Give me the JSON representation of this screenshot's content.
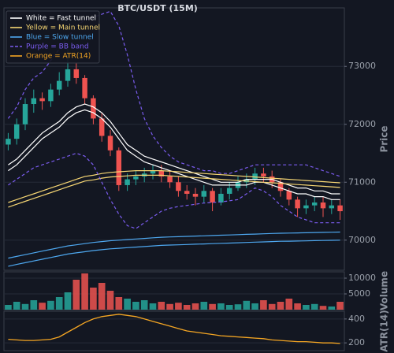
{
  "chart_data": [
    {
      "type": "candlestick",
      "title": "BTC/USDT (15M)",
      "ylabel": "Price",
      "ylim": [
        69480,
        74010
      ],
      "yticks": [
        70000,
        71000,
        72000,
        73000
      ],
      "grid": true,
      "up_color": "#26a69a",
      "down_color": "#ef5350",
      "open": [
        71650,
        71750,
        72000,
        72350,
        72450,
        72400,
        72600,
        72750,
        72950,
        72800,
        72450,
        72100,
        71800,
        71550,
        70950,
        71050,
        71100,
        71150,
        71200,
        71100,
        71000,
        70850,
        70800,
        70750,
        70850,
        70650,
        70800,
        70900,
        71000,
        71050,
        71150,
        71100,
        71000,
        70850,
        70700,
        70550,
        70600,
        70650,
        70550,
        70600
      ],
      "high": [
        71850,
        72100,
        72450,
        72600,
        72550,
        72700,
        72900,
        73300,
        73050,
        72850,
        72500,
        72200,
        71900,
        71600,
        71150,
        71200,
        71250,
        71300,
        71300,
        71200,
        71100,
        70950,
        70900,
        70950,
        70900,
        70900,
        71000,
        71100,
        71150,
        71250,
        71250,
        71200,
        71050,
        70900,
        70750,
        70700,
        70750,
        70750,
        70700,
        70700
      ],
      "low": [
        71550,
        71650,
        71900,
        72200,
        72250,
        72300,
        72500,
        72650,
        72700,
        72350,
        72000,
        71700,
        71450,
        70850,
        70850,
        70950,
        71000,
        71050,
        71000,
        70900,
        70750,
        70700,
        70600,
        70650,
        70500,
        70600,
        70700,
        70850,
        70900,
        70950,
        71000,
        70900,
        70750,
        70600,
        70400,
        70450,
        70500,
        70400,
        70450,
        70350
      ],
      "close": [
        71750,
        72000,
        72350,
        72450,
        72400,
        72600,
        72750,
        72950,
        72800,
        72450,
        72100,
        71800,
        71550,
        70950,
        71050,
        71100,
        71150,
        71200,
        71100,
        71000,
        70850,
        70800,
        70750,
        70850,
        70650,
        70800,
        70900,
        71000,
        71050,
        71150,
        71100,
        71000,
        70850,
        70700,
        70550,
        70600,
        70650,
        70550,
        70600,
        70500
      ],
      "series": [
        {
          "color": "#ffffff",
          "values": [
            71300,
            71400,
            71550,
            71700,
            71850,
            71950,
            72050,
            72200,
            72300,
            72350,
            72300,
            72200,
            72050,
            71850,
            71650,
            71550,
            71450,
            71400,
            71350,
            71300,
            71250,
            71200,
            71150,
            71100,
            71050,
            71000,
            71000,
            71000,
            71050,
            71050,
            71050,
            71050,
            71000,
            70950,
            70900,
            70900,
            70850,
            70850,
            70800,
            70800
          ]
        },
        {
          "color": "#ffffff",
          "values": [
            71200,
            71300,
            71450,
            71600,
            71750,
            71850,
            71950,
            72100,
            72200,
            72250,
            72200,
            72100,
            71950,
            71750,
            71550,
            71450,
            71350,
            71300,
            71250,
            71200,
            71150,
            71100,
            71050,
            71000,
            70950,
            70950,
            70950,
            70950,
            70950,
            71000,
            71000,
            70950,
            70900,
            70850,
            70800,
            70800,
            70750,
            70750,
            70700,
            70700
          ]
        },
        {
          "color": "#f7d774",
          "values": [
            70650,
            70700,
            70750,
            70800,
            70850,
            70900,
            70950,
            71000,
            71050,
            71100,
            71120,
            71150,
            71170,
            71180,
            71190,
            71200,
            71200,
            71200,
            71200,
            71190,
            71180,
            71170,
            71160,
            71150,
            71140,
            71130,
            71120,
            71110,
            71100,
            71090,
            71080,
            71070,
            71060,
            71050,
            71040,
            71030,
            71020,
            71010,
            71000,
            70990
          ]
        },
        {
          "color": "#f7d774",
          "values": [
            70570,
            70620,
            70670,
            70720,
            70770,
            70820,
            70870,
            70920,
            70970,
            71020,
            71040,
            71070,
            71090,
            71100,
            71110,
            71120,
            71120,
            71120,
            71120,
            71110,
            71100,
            71090,
            71080,
            71070,
            71060,
            71050,
            71040,
            71030,
            71020,
            71010,
            71000,
            70990,
            70980,
            70970,
            70960,
            70950,
            70940,
            70930,
            70920,
            70910
          ]
        },
        {
          "color": "#4ea8f0",
          "values": [
            69690,
            69720,
            69750,
            69780,
            69810,
            69840,
            69870,
            69900,
            69920,
            69940,
            69960,
            69975,
            69990,
            70000,
            70010,
            70020,
            70030,
            70040,
            70050,
            70055,
            70060,
            70065,
            70070,
            70075,
            70080,
            70085,
            70090,
            70095,
            70100,
            70105,
            70110,
            70115,
            70120,
            70122,
            70125,
            70128,
            70131,
            70134,
            70137,
            70140
          ]
        },
        {
          "color": "#4ea8f0",
          "values": [
            69550,
            69580,
            69610,
            69640,
            69670,
            69700,
            69730,
            69760,
            69780,
            69800,
            69820,
            69835,
            69850,
            69860,
            69870,
            69880,
            69890,
            69900,
            69910,
            69915,
            69920,
            69925,
            69930,
            69935,
            69940,
            69945,
            69950,
            69955,
            69960,
            69965,
            69970,
            69975,
            69980,
            69982,
            69985,
            69988,
            69991,
            69994,
            69997,
            70000
          ]
        },
        {
          "color": "#7b5cf0",
          "dashed": true,
          "values": [
            72100,
            72300,
            72600,
            72800,
            72900,
            73100,
            73300,
            73500,
            73700,
            73800,
            73850,
            73900,
            73950,
            73700,
            73200,
            72600,
            72100,
            71800,
            71600,
            71450,
            71350,
            71300,
            71250,
            71200,
            71200,
            71150,
            71150,
            71200,
            71250,
            71300,
            71300,
            71300,
            71300,
            71300,
            71300,
            71300,
            71250,
            71200,
            71150,
            71100
          ]
        },
        {
          "color": "#7b5cf0",
          "dashed": true,
          "values": [
            70950,
            71050,
            71150,
            71250,
            71300,
            71350,
            71400,
            71450,
            71500,
            71450,
            71300,
            71000,
            70700,
            70450,
            70250,
            70200,
            70300,
            70400,
            70500,
            70550,
            70580,
            70600,
            70620,
            70640,
            70650,
            70660,
            70680,
            70700,
            70800,
            70900,
            70850,
            70750,
            70600,
            70500,
            70400,
            70350,
            70300,
            70300,
            70300,
            70300
          ]
        }
      ],
      "legend_position": "upper left",
      "legend": [
        {
          "label": "White = Fast tunnel",
          "color": "#ffffff"
        },
        {
          "label": "Yellow = Main tunnel",
          "color": "#f7d774"
        },
        {
          "label": "Blue = Slow tunnel",
          "color": "#4ea8f0"
        },
        {
          "label": "Purple = BB band",
          "color": "#7b5cf0",
          "dashed": true
        },
        {
          "label": "Orange = ATR(14)",
          "color": "#f5a623"
        }
      ]
    },
    {
      "type": "bar",
      "ylabel": "Volume",
      "ylim": [
        0,
        12000
      ],
      "yticks": [
        5000,
        10000
      ],
      "grid": true,
      "values": [
        1500,
        2500,
        1800,
        3000,
        2200,
        2800,
        4000,
        5500,
        9500,
        11500,
        7000,
        8500,
        6000,
        4000,
        3500,
        2500,
        3000,
        2000,
        2500,
        1800,
        2200,
        1500,
        2000,
        2500,
        1800,
        2000,
        1500,
        1700,
        2800,
        2000,
        3000,
        1800,
        2500,
        3500,
        2000,
        1500,
        1800,
        1200,
        1000,
        2500
      ]
    },
    {
      "type": "line",
      "ylabel": "ATR(14)",
      "ylim": [
        135,
        465
      ],
      "yticks": [
        200,
        400
      ],
      "grid": true,
      "color": "#f5a623",
      "values": [
        230,
        225,
        220,
        220,
        225,
        230,
        250,
        290,
        330,
        370,
        400,
        420,
        430,
        440,
        430,
        420,
        400,
        380,
        360,
        340,
        320,
        300,
        290,
        280,
        270,
        260,
        255,
        250,
        245,
        240,
        235,
        225,
        220,
        215,
        210,
        210,
        205,
        200,
        200,
        195
      ]
    }
  ]
}
